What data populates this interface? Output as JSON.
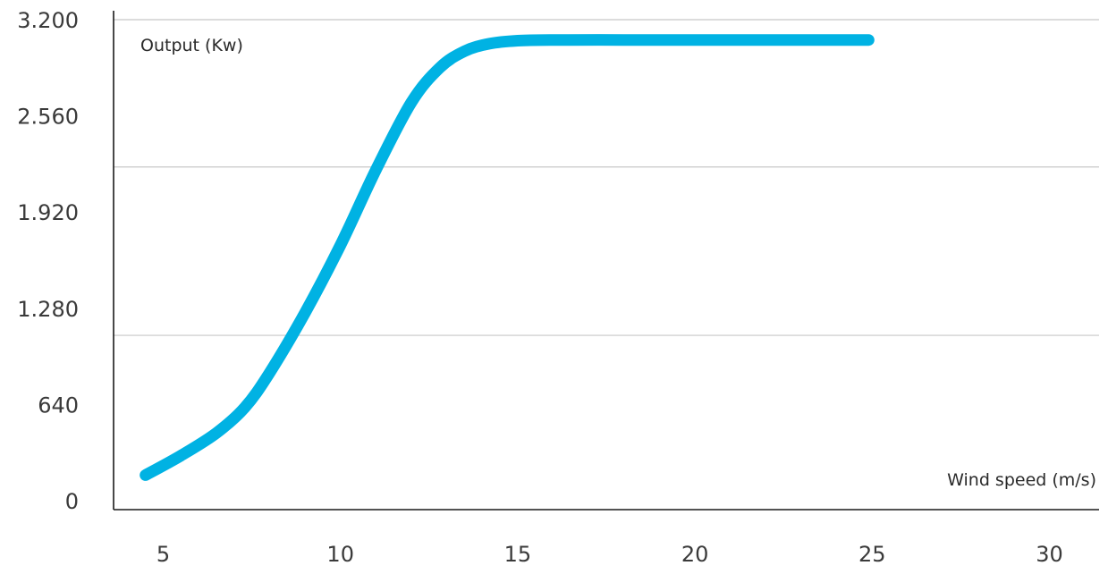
{
  "colors": {
    "series": "#00b2e3",
    "axis": "#1a1a1a",
    "grid": "#c8c8c8",
    "text": "#3a3a3a"
  },
  "chart_data": {
    "type": "line",
    "title": "",
    "xlabel": "Wind speed (m/s)",
    "ylabel": "Output (Kw)",
    "xlim": [
      3.6,
      31.4
    ],
    "ylim": [
      0,
      3200
    ],
    "x_ticks": [
      5,
      10,
      15,
      20,
      25,
      30
    ],
    "x_tick_labels": [
      "5",
      "10",
      "15",
      "20",
      "25",
      "30"
    ],
    "y_ticks": [
      0,
      640,
      1280,
      1920,
      2560,
      3200
    ],
    "y_tick_labels": [
      "0",
      "640",
      "1.280",
      "1.920",
      "2.560",
      "3.200"
    ],
    "gridlines_y": [
      1100,
      2220,
      3200
    ],
    "grid": true,
    "legend": "none",
    "series": [
      {
        "x": [
          4.5,
          5.5,
          6.5,
          7.3,
          8.0,
          9.0,
          10.0,
          11.0,
          12.0,
          12.8,
          13.5,
          14.2,
          15.0,
          16.0,
          18.0,
          20.0,
          22.0,
          24.0,
          24.9
        ],
        "values": [
          170,
          300,
          450,
          620,
          850,
          1250,
          1700,
          2200,
          2650,
          2880,
          2990,
          3040,
          3060,
          3065,
          3065,
          3065,
          3065,
          3065,
          3065
        ]
      }
    ]
  }
}
